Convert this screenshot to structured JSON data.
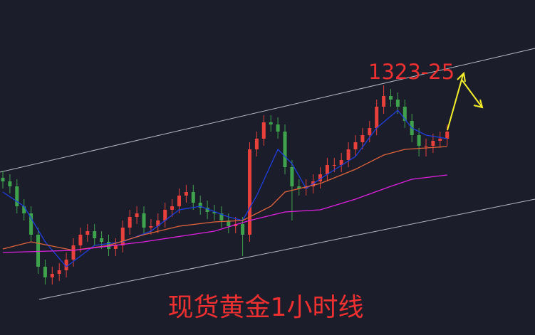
{
  "chart_data": {
    "type": "candlestick",
    "title": "现货黄金1小时线",
    "annotation": "1323-25",
    "up_color": "#e8403a",
    "down_color": "#3fa34d",
    "ylim": [
      1288,
      1335
    ],
    "open": [
      1310,
      1309.5,
      1308.8,
      1306,
      1305,
      1302,
      1297.5,
      1296,
      1296.5,
      1297,
      1298.5,
      1300.5,
      1302,
      1302.5,
      1301.5,
      1301,
      1300,
      1300.5,
      1303,
      1304.5,
      1305,
      1303,
      1303.2,
      1304,
      1305.5,
      1306,
      1307.5,
      1308,
      1306.5,
      1305.8,
      1305.2,
      1305,
      1304,
      1303.2,
      1303.5,
      1302,
      1314,
      1315.5,
      1317.8,
      1317.5,
      1316.5,
      1311.5,
      1308.8,
      1308.5,
      1308.8,
      1309.5,
      1310.5,
      1311.8,
      1311.8,
      1312.5,
      1314,
      1315,
      1316,
      1317,
      1320,
      1321.5,
      1321,
      1320,
      1318,
      1316,
      1314.5,
      1314.5,
      1315.2,
      1315.5
    ],
    "high": [
      1311,
      1310.5,
      1309.8,
      1307,
      1306,
      1303,
      1298.5,
      1297.5,
      1298,
      1299.5,
      1301.5,
      1303,
      1303.5,
      1303.5,
      1302.5,
      1302,
      1301.5,
      1304,
      1305.5,
      1306,
      1306,
      1304.2,
      1305,
      1306.5,
      1307,
      1308.5,
      1309,
      1309,
      1307.5,
      1306.8,
      1306.2,
      1306,
      1305,
      1304.5,
      1304.5,
      1315,
      1316.5,
      1318.8,
      1318.8,
      1318.5,
      1317.5,
      1312.5,
      1309.8,
      1309.8,
      1310.5,
      1311.5,
      1312.8,
      1312.8,
      1313.5,
      1315,
      1316,
      1317,
      1318,
      1321,
      1323,
      1322.5,
      1322,
      1321,
      1319,
      1317,
      1315.5,
      1316.2,
      1316.5,
      1317.5
    ],
    "low": [
      1308.5,
      1307.8,
      1305,
      1304,
      1301,
      1296.5,
      1295,
      1295,
      1295.5,
      1296,
      1297.5,
      1299.5,
      1301,
      1300.5,
      1300,
      1299,
      1299,
      1299.5,
      1302,
      1303.5,
      1302,
      1302,
      1302.2,
      1303,
      1304.5,
      1305,
      1306.5,
      1305.5,
      1304.8,
      1304.2,
      1304,
      1303,
      1302.2,
      1302.2,
      1299,
      1301,
      1313,
      1314.5,
      1316.5,
      1315.5,
      1310.5,
      1304,
      1307.5,
      1307.5,
      1307.8,
      1308.5,
      1309.5,
      1310.8,
      1310.8,
      1311.5,
      1313,
      1314,
      1315,
      1316,
      1319,
      1320,
      1319,
      1317,
      1315,
      1313,
      1313,
      1313.5,
      1314.2,
      1314.5
    ],
    "close": [
      1309.5,
      1308.8,
      1306,
      1305,
      1302,
      1297.5,
      1296,
      1296.5,
      1297,
      1298.5,
      1300.5,
      1302,
      1302.5,
      1301.5,
      1301,
      1300,
      1300.5,
      1303,
      1304.5,
      1305,
      1303,
      1303.2,
      1304,
      1305.5,
      1306,
      1307.5,
      1308,
      1306.5,
      1305.8,
      1305.2,
      1305,
      1304,
      1303.2,
      1303.5,
      1302,
      1314,
      1315.5,
      1317.8,
      1317.5,
      1316.5,
      1311.5,
      1308.8,
      1308.5,
      1308.8,
      1309.5,
      1310.5,
      1311.8,
      1311.8,
      1312.5,
      1314,
      1315,
      1316,
      1317,
      1320,
      1321.5,
      1321,
      1320,
      1318,
      1316,
      1314.5,
      1314.5,
      1315.2,
      1315.5,
      1316.5
    ],
    "series": [
      {
        "color": "#1f3fe0",
        "x": [
          0,
          3,
          6,
          9,
          13,
          17,
          21,
          25,
          28,
          32,
          34,
          36,
          39,
          41,
          43,
          46,
          50,
          53,
          56,
          58,
          60,
          63
        ],
        "values": [
          1308,
          1306,
          1301,
          1297.5,
          1300.5,
          1301,
          1302.5,
          1305.5,
          1306,
          1304.5,
          1304,
          1307.5,
          1314,
          1312,
          1308.5,
          1310.5,
          1313,
          1317,
          1319.5,
          1317,
          1316,
          1315.5
        ]
      },
      {
        "color": "#e0643a",
        "x": [
          0,
          4,
          10,
          15,
          20,
          25,
          30,
          34,
          38,
          40,
          45,
          50,
          54,
          57,
          60,
          63
        ],
        "values": [
          1300,
          1301,
          1299.8,
          1300.5,
          1302,
          1303.2,
          1303.8,
          1304,
          1306,
          1308,
          1309.2,
          1311.2,
          1313.2,
          1314,
          1314.2,
          1314.4
        ]
      },
      {
        "color": "#e020e0",
        "x": [
          0,
          10,
          20,
          30,
          35,
          40,
          45,
          50,
          55,
          58,
          63
        ],
        "values": [
          1299.5,
          1299.8,
          1301,
          1302.5,
          1304,
          1305.2,
          1305.5,
          1307,
          1308.8,
          1309.8,
          1310.4
        ]
      }
    ]
  }
}
